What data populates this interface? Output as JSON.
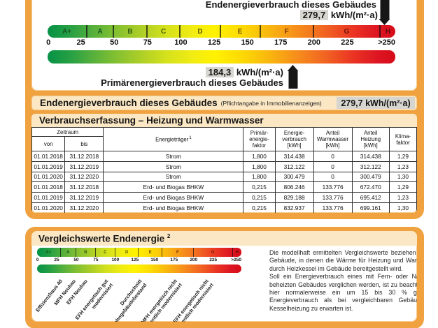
{
  "unit": "kWh/(m²·a)",
  "scale": {
    "unit_max": 261,
    "marker_cap": 253,
    "bands": [
      {
        "letter": "A+",
        "from": 0,
        "to": 30,
        "letter_color": "#14521c"
      },
      {
        "letter": "A",
        "from": 30,
        "to": 50,
        "letter_color": "#14521c"
      },
      {
        "letter": "B",
        "from": 50,
        "to": 75,
        "letter_color": "#2f5a10"
      },
      {
        "letter": "C",
        "from": 75,
        "to": 100,
        "letter_color": "#4a5c08"
      },
      {
        "letter": "D",
        "from": 100,
        "to": 130,
        "letter_color": "#5f5a00"
      },
      {
        "letter": "E",
        "from": 130,
        "to": 160,
        "letter_color": "#6b4a00"
      },
      {
        "letter": "F",
        "from": 160,
        "to": 200,
        "letter_color": "#713000"
      },
      {
        "letter": "G",
        "from": 200,
        "to": 250,
        "letter_color": "#6e1405"
      },
      {
        "letter": "H",
        "from": 250,
        "to": 261,
        "letter_color": "#5e0a0a"
      }
    ],
    "ticks": [
      {
        "label": "0",
        "value": 0
      },
      {
        "label": "25",
        "value": 25
      },
      {
        "label": "50",
        "value": 50
      },
      {
        "label": "75",
        "value": 75
      },
      {
        "label": "100",
        "value": 100
      },
      {
        "label": "125",
        "value": 125
      },
      {
        "label": "150",
        "value": 150
      },
      {
        "label": "175",
        "value": 175
      },
      {
        "label": "200",
        "value": 200
      },
      {
        "label": "225",
        "value": 225
      },
      {
        "label": ">250",
        "value": 261,
        "align": "right"
      }
    ]
  },
  "top_graphic": {
    "end_label": "Endenergieverbrauch dieses Gebäudes",
    "end_value": "279,7",
    "end_value_num": 279.7,
    "end_unit": "kWh/(m²·a)",
    "primary_label": "Primärenergieverbrauch dieses Gebäudes",
    "primary_value": "184,3",
    "primary_value_num": 184.3,
    "primary_unit": "kWh/(m²·a)"
  },
  "end_energy_row": {
    "title": "Endenergieverbrauch dieses Gebäudes",
    "note": "(Pflichtangabe in Immobilienanzeigen)",
    "value": "279,7 kWh/(m²·a)"
  },
  "consumption_table": {
    "title": "Verbrauchserfassung – Heizung und Warmwasser",
    "headers": {
      "zeitraum": "Zeitraum",
      "von": "von",
      "bis": "bis",
      "energietraeger": "Energieträger",
      "energietraeger_footnote": "1",
      "primaerfaktor": "Primär-\nenergie-\nfaktor",
      "verbrauch": "Energie-\nverbrauch\n[kWh]",
      "warmwasser": "Anteil\nWarmwasser\n[kWh]",
      "heizung": "Anteil\nHeizung\n[kWh]",
      "klimafaktor": "Klima-\nfaktor"
    },
    "rows": [
      [
        "01.01.2018",
        "31.12.2018",
        "Strom",
        "1,800",
        "314.438",
        "0",
        "314.438",
        "1,29"
      ],
      [
        "01.01.2019",
        "31.12.2019",
        "Strom",
        "1,800",
        "312.122",
        "0",
        "312.122",
        "1,23"
      ],
      [
        "01.01.2020",
        "31.12.2020",
        "Strom",
        "1,800",
        "300.479",
        "0",
        "300.479",
        "1,30"
      ],
      [
        "01.01.2018",
        "31.12.2018",
        "Erd- und Biogas BHKW",
        "0,215",
        "806.246",
        "133.776",
        "672.470",
        "1,29"
      ],
      [
        "01.01.2019",
        "31.12.2019",
        "Erd- und Biogas BHKW",
        "0,215",
        "829.188",
        "133.776",
        "695.412",
        "1,23"
      ],
      [
        "01.01.2020",
        "31.12.2020",
        "Erd- und Biogas BHKW",
        "0,215",
        "832.937",
        "133.776",
        "699.161",
        "1,30"
      ]
    ]
  },
  "comparison": {
    "title": "Vergleichswerte Endenergie",
    "footnote": "2",
    "reference_labels": [
      {
        "lines": [
          "Effizienzhaus 40"
        ],
        "value": 28
      },
      {
        "lines": [
          "MFH Neubau"
        ],
        "value": 45
      },
      {
        "lines": [
          "EFH Neubau"
        ],
        "value": 60
      },
      {
        "lines": [
          "EFH energetisch gut",
          "modernisiert"
        ],
        "value": 87
      },
      {
        "lines": [
          "Durchschnitt",
          "Wohngebäudebestand"
        ],
        "value": 130
      },
      {
        "lines": [
          "MFH energetisch nicht",
          "wesentlich modernisiert"
        ],
        "value": 175
      },
      {
        "lines": [
          "EFH energetisch nicht",
          "wesentlich modernisiert"
        ],
        "value": 215
      }
    ],
    "paragraphs": [
      "Die modellhaft ermittelten Vergleichswerte beziehen sich auf Gebäude, in denen die Wärme für Heizung und Warmwasser durch Heizkessel im Gebäude bereitgestellt wird.",
      "Soll ein Energieverbrauch eines mit Fern- oder Nahwärme beheizten Gebäudes verglichen werden, ist zu beachten, dass hier normalerweise ein um 15 bis 30 % geringerer Energieverbrauch als bei vergleichbaren Gebäuden mit Kesselheizung zu erwarten ist."
    ]
  },
  "colors": {
    "frame_orange": "#efa23f",
    "header_cream": "#fbe7c3",
    "value_box_gray": "#d7d5d0",
    "arrow_black": "#161616",
    "scale_green": "#069247",
    "scale_yellow": "#fff200",
    "scale_orange": "#f68c1c",
    "scale_red": "#d60c18"
  }
}
